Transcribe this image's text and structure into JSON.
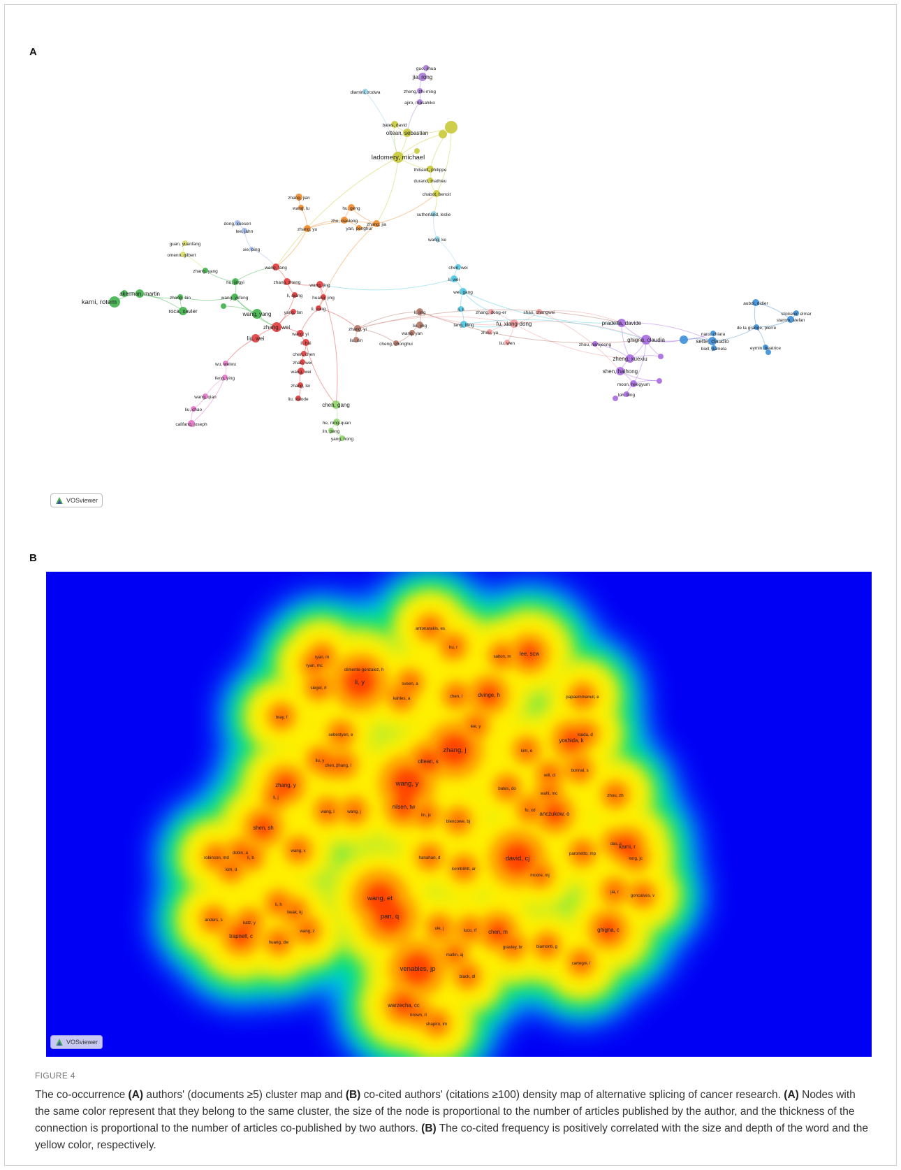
{
  "panelA": {
    "label": "A",
    "watermark": "VOSviewer",
    "nodes": [
      {
        "id": "guo_jihua",
        "label": "guo, jihua",
        "c": "purple",
        "r": 4
      },
      {
        "id": "jia_rong",
        "label": "jia, rong",
        "c": "purple",
        "r": 6
      },
      {
        "id": "dlamini",
        "label": "dlamini, zodwa",
        "c": "lightblue",
        "r": 4
      },
      {
        "id": "zheng_zm",
        "label": "zheng, zhi-ming",
        "c": "purple",
        "r": 4
      },
      {
        "id": "ajiro",
        "label": "ajiro, masahiko",
        "c": "purple",
        "r": 4
      },
      {
        "id": "bates",
        "label": "bates, david",
        "c": "olive",
        "r": 5
      },
      {
        "id": "oltean",
        "label": "oltean, sebastian",
        "c": "olive",
        "r": 6
      },
      {
        "id": "olive_a",
        "label": "",
        "c": "olive",
        "r": 9
      },
      {
        "id": "olive_b",
        "label": "",
        "c": "olive",
        "r": 6
      },
      {
        "id": "ladomery",
        "label": "ladomery, michael",
        "c": "olive",
        "r": 8
      },
      {
        "id": "olive_c",
        "label": "",
        "c": "olive",
        "r": 4
      },
      {
        "id": "thibault",
        "label": "thibault, philippe",
        "c": "olive",
        "r": 5
      },
      {
        "id": "durand",
        "label": "durand, mathieu",
        "c": "olive",
        "r": 4
      },
      {
        "id": "chabot",
        "label": "chabot, benoit",
        "c": "olive",
        "r": 5
      },
      {
        "id": "sutherland",
        "label": "sutherland, leslie",
        "c": "lightblue",
        "r": 4
      },
      {
        "id": "wang_ke",
        "label": "wang, ke",
        "c": "lightblue",
        "r": 4
      },
      {
        "id": "zhang_jian",
        "label": "zhang, jian",
        "c": "orange",
        "r": 5
      },
      {
        "id": "wang_lu",
        "label": "wang, lu",
        "c": "orange",
        "r": 4
      },
      {
        "id": "hu_geng",
        "label": "hu, geng",
        "c": "orange",
        "r": 5
      },
      {
        "id": "zhu_xiaolong",
        "label": "zhu, xiaolong",
        "c": "orange",
        "r": 5
      },
      {
        "id": "yan_penghui",
        "label": "yan, penghui",
        "c": "orange",
        "r": 4
      },
      {
        "id": "zhang_yu",
        "label": "zhang, yu",
        "c": "orange",
        "r": 5
      },
      {
        "id": "zhang_jia",
        "label": "zhang, jia",
        "c": "orange",
        "r": 5
      },
      {
        "id": "dong",
        "label": "dong, xuesen",
        "c": "paleblue",
        "r": 4
      },
      {
        "id": "lee_jahn",
        "label": "lee, jahn",
        "c": "paleblue",
        "r": 4
      },
      {
        "id": "xie_ping",
        "label": "xie, ping",
        "c": "paleblue",
        "r": 3
      },
      {
        "id": "guan",
        "label": "guan, yuanfang",
        "c": "yellowgreen",
        "r": 4
      },
      {
        "id": "omenn",
        "label": "omenn, gilbert",
        "c": "yellowgreen",
        "r": 4
      },
      {
        "id": "zhang_yang",
        "label": "zhang, yang",
        "c": "green",
        "r": 4
      },
      {
        "id": "hu_jingyi",
        "label": "hu, jingyi",
        "c": "green",
        "r": 5
      },
      {
        "id": "karni",
        "label": "karni, rotem",
        "c": "green",
        "r": 8
      },
      {
        "id": "akerman",
        "label": "akerman, martin",
        "c": "green",
        "r": 6
      },
      {
        "id": "zhang_bin",
        "label": "zhang, bin",
        "c": "green",
        "r": 4
      },
      {
        "id": "roca",
        "label": "roca, xavier",
        "c": "green",
        "r": 6
      },
      {
        "id": "wang_yefeng",
        "label": "wang, yefeng",
        "c": "green",
        "r": 5
      },
      {
        "id": "wang_yang",
        "label": "wang, yang",
        "c": "green",
        "r": 7
      },
      {
        "id": "green_a",
        "label": "",
        "c": "green",
        "r": 5
      },
      {
        "id": "green_b",
        "label": "",
        "c": "green",
        "r": 4
      },
      {
        "id": "wang_fang",
        "label": "wang, fang",
        "c": "red",
        "r": 5
      },
      {
        "id": "zhang_zheng",
        "label": "zhang, zheng",
        "c": "red",
        "r": 5
      },
      {
        "id": "li_qiang",
        "label": "li, qiang",
        "c": "red",
        "r": 4
      },
      {
        "id": "wang_jing",
        "label": "wang, jing",
        "c": "red",
        "r": 5
      },
      {
        "id": "huang_jing",
        "label": "huang, jing",
        "c": "red",
        "r": 4
      },
      {
        "id": "yang_fan",
        "label": "yang, fan",
        "c": "red",
        "r": 4
      },
      {
        "id": "li_yang",
        "label": "li, yang",
        "c": "red",
        "r": 4
      },
      {
        "id": "zhang_wei",
        "label": "zhang, wei",
        "c": "red",
        "r": 7
      },
      {
        "id": "liu_wei",
        "label": "liu, wei",
        "c": "red",
        "r": 6
      },
      {
        "id": "wang_yi",
        "label": "wang, yi",
        "c": "red",
        "r": 5
      },
      {
        "id": "li_hui",
        "label": "li, hui",
        "c": "red",
        "r": 5
      },
      {
        "id": "chen_chen",
        "label": "chen, chen",
        "c": "red",
        "r": 4
      },
      {
        "id": "zhao_wei",
        "label": "zhao, wei",
        "c": "red",
        "r": 4
      },
      {
        "id": "wang_wei",
        "label": "wang, wei",
        "c": "red",
        "r": 5
      },
      {
        "id": "zhang_lei",
        "label": "zhang, lei",
        "c": "red",
        "r": 4
      },
      {
        "id": "liu_xiaode",
        "label": "liu, xiaode",
        "c": "red",
        "r": 4
      },
      {
        "id": "wu_weiwu",
        "label": "wu, weiwu",
        "c": "pink",
        "r": 4
      },
      {
        "id": "feng_ying",
        "label": "feng, ying",
        "c": "pink",
        "r": 4
      },
      {
        "id": "wang_qian",
        "label": "wang, qian",
        "c": "pink",
        "r": 4
      },
      {
        "id": "liu_chao",
        "label": "liu, chao",
        "c": "pink",
        "r": 4
      },
      {
        "id": "califano",
        "label": "califano, joseph",
        "c": "pink",
        "r": 5
      },
      {
        "id": "chen_gang",
        "label": "chen, gang",
        "c": "lightgreen",
        "r": 6
      },
      {
        "id": "he_rq",
        "label": "he, rong-quan",
        "c": "lightgreen",
        "r": 5
      },
      {
        "id": "lin_peng",
        "label": "lin, peng",
        "c": "lightgreen",
        "r": 4
      },
      {
        "id": "yang_hong",
        "label": "yang, hong",
        "c": "lightgreen",
        "r": 4
      },
      {
        "id": "zhang_yi",
        "label": "zhang, yi",
        "c": "brown",
        "r": 5
      },
      {
        "id": "liu_xin",
        "label": "liu, xin",
        "c": "brown",
        "r": 4
      },
      {
        "id": "cheng",
        "label": "cheng, chonghui",
        "c": "brown",
        "r": 4
      },
      {
        "id": "li_jing",
        "label": "li, jing",
        "c": "brown",
        "r": 5
      },
      {
        "id": "liu_jing",
        "label": "liu, jing",
        "c": "brown",
        "r": 5
      },
      {
        "id": "wang_yan",
        "label": "wang, yan",
        "c": "brown",
        "r": 4
      },
      {
        "id": "chen_wei",
        "label": "chen, wei",
        "c": "cyan",
        "r": 4
      },
      {
        "id": "li_wei",
        "label": "li, wei",
        "c": "cyan",
        "r": 5
      },
      {
        "id": "wei_gang",
        "label": "wei, gang",
        "c": "cyan",
        "r": 5
      },
      {
        "id": "li_li",
        "label": "li, li",
        "c": "cyan",
        "r": 4
      },
      {
        "id": "tang_liling",
        "label": "tang, liling",
        "c": "cyan",
        "r": 5
      },
      {
        "id": "zhang_de",
        "label": "zhang, dong-er",
        "c": "salmon",
        "r": 4
      },
      {
        "id": "fu_xd",
        "label": "fu, xiang-dong",
        "c": "salmon",
        "r": 6
      },
      {
        "id": "zhou_yu",
        "label": "zhou, yu",
        "c": "salmon",
        "r": 4
      },
      {
        "id": "liu_wen",
        "label": "liu, wen",
        "c": "salmon",
        "r": 4
      },
      {
        "id": "shao",
        "label": "shao, changwei",
        "c": "salmon",
        "r": 4
      },
      {
        "id": "pradella",
        "label": "pradella, davide",
        "c": "violet",
        "r": 6
      },
      {
        "id": "ghigna",
        "label": "ghigna, claudia",
        "c": "violet",
        "r": 7
      },
      {
        "id": "zhou_nj",
        "label": "zhou, namjeong",
        "c": "violet",
        "r": 4
      },
      {
        "id": "zheng_xx",
        "label": "zheng, xuexiu",
        "c": "violet",
        "r": 6
      },
      {
        "id": "shen_hh",
        "label": "shen, haihong",
        "c": "violet",
        "r": 6
      },
      {
        "id": "moon",
        "label": "moon, heegyum",
        "c": "violet",
        "r": 5
      },
      {
        "id": "loh",
        "label": "loh, tiing",
        "c": "violet",
        "r": 4
      },
      {
        "id": "v1",
        "label": "",
        "c": "violet",
        "r": 4
      },
      {
        "id": "v2",
        "label": "",
        "c": "violet",
        "r": 4
      },
      {
        "id": "v3",
        "label": "",
        "c": "violet",
        "r": 4
      },
      {
        "id": "aubol",
        "label": "aubol, didier",
        "c": "blue",
        "r": 5
      },
      {
        "id": "stickeler",
        "label": "stickeler, elmar",
        "c": "blue",
        "r": 4
      },
      {
        "id": "stamm",
        "label": "stamm, stefan",
        "c": "blue",
        "r": 5
      },
      {
        "id": "lagrange",
        "label": "de la grange, pierre",
        "c": "blue",
        "r": 4
      },
      {
        "id": "naro",
        "label": "naro, chiara",
        "c": "blue",
        "r": 4
      },
      {
        "id": "sette",
        "label": "sette, claudio",
        "c": "blue",
        "r": 6
      },
      {
        "id": "biell",
        "label": "biell, pamela",
        "c": "blue",
        "r": 4
      },
      {
        "id": "eymin",
        "label": "eymin, beatrice",
        "c": "blue",
        "r": 4
      },
      {
        "id": "b1",
        "label": "",
        "c": "blue",
        "r": 6
      },
      {
        "id": "b2",
        "label": "",
        "c": "blue",
        "r": 4
      }
    ]
  },
  "panelB": {
    "label": "B",
    "watermark": "VOSviewer",
    "terms": [
      {
        "label": "antonarakis, es",
        "w": 1
      },
      {
        "label": "hu, r",
        "w": 1
      },
      {
        "label": "salton, m",
        "w": 1
      },
      {
        "label": "lee, scw",
        "w": 2
      },
      {
        "label": "ryan, m",
        "w": 1
      },
      {
        "label": "ryan, mc",
        "w": 1
      },
      {
        "label": "climente-gonzalez, h",
        "w": 1
      },
      {
        "label": "li, y",
        "w": 3
      },
      {
        "label": "sveen, a",
        "w": 1
      },
      {
        "label": "siegel, rl",
        "w": 1
      },
      {
        "label": "kahles, a",
        "w": 1
      },
      {
        "label": "chen, l",
        "w": 1
      },
      {
        "label": "dvinge, h",
        "w": 2
      },
      {
        "label": "papaemmanuil, e",
        "w": 1
      },
      {
        "label": "bray, f",
        "w": 1
      },
      {
        "label": "lee, y",
        "w": 1
      },
      {
        "label": "sebestyen, e",
        "w": 1
      },
      {
        "label": "kaida, d",
        "w": 1
      },
      {
        "label": "yoshida, k",
        "w": 2
      },
      {
        "label": "zhang, j",
        "w": 3
      },
      {
        "label": "kim, e",
        "w": 1
      },
      {
        "label": "liu, y",
        "w": 1
      },
      {
        "label": "oltean, s",
        "w": 2
      },
      {
        "label": "chen, j",
        "w": 1
      },
      {
        "label": "zhang, l",
        "w": 1
      },
      {
        "label": "bonnal, s",
        "w": 1
      },
      {
        "label": "will, cl",
        "w": 1
      },
      {
        "label": "wang, y",
        "w": 3
      },
      {
        "label": "zhang, y",
        "w": 2
      },
      {
        "label": "bates, do",
        "w": 1
      },
      {
        "label": "wahl, mc",
        "w": 1
      },
      {
        "label": "zhou, zh",
        "w": 1
      },
      {
        "label": "li, j",
        "w": 1
      },
      {
        "label": "nilsen, tw",
        "w": 2
      },
      {
        "label": "anczukow, o",
        "w": 2
      },
      {
        "label": "fu, xd",
        "w": 1
      },
      {
        "label": "wang, l",
        "w": 1
      },
      {
        "label": "wang, j",
        "w": 1
      },
      {
        "label": "lin, jc",
        "w": 1
      },
      {
        "label": "blencowe, bj",
        "w": 1
      },
      {
        "label": "shen, sh",
        "w": 2
      },
      {
        "label": "das, s",
        "w": 1
      },
      {
        "label": "karni, r",
        "w": 2
      },
      {
        "label": "dobin, a",
        "w": 1
      },
      {
        "label": "wang, x",
        "w": 1
      },
      {
        "label": "david, cj",
        "w": 3
      },
      {
        "label": "paronetto, mp",
        "w": 1
      },
      {
        "label": "robinson, md",
        "w": 1
      },
      {
        "label": "li, b",
        "w": 1
      },
      {
        "label": "hanahan, d",
        "w": 1
      },
      {
        "label": "long, jc",
        "w": 1
      },
      {
        "label": "kim, d",
        "w": 1
      },
      {
        "label": "kornblihtt, ar",
        "w": 1
      },
      {
        "label": "moore, mj",
        "w": 1
      },
      {
        "label": "wang, et",
        "w": 3
      },
      {
        "label": "jia, r",
        "w": 1
      },
      {
        "label": "goncalves, v",
        "w": 1
      },
      {
        "label": "li, h",
        "w": 1
      },
      {
        "label": "pan, q",
        "w": 3
      },
      {
        "label": "liwak, kj",
        "w": 1
      },
      {
        "label": "anders, s",
        "w": 1
      },
      {
        "label": "katz, y",
        "w": 1
      },
      {
        "label": "ule, j",
        "w": 1
      },
      {
        "label": "luco, rf",
        "w": 1
      },
      {
        "label": "chen, m",
        "w": 2
      },
      {
        "label": "ghigna, c",
        "w": 2
      },
      {
        "label": "wang, z",
        "w": 1
      },
      {
        "label": "trapnell, c",
        "w": 2
      },
      {
        "label": "gravley, br",
        "w": 1
      },
      {
        "label": "biamonti, g",
        "w": 1
      },
      {
        "label": "huang, dw",
        "w": 1
      },
      {
        "label": "matlin, aj",
        "w": 1
      },
      {
        "label": "cartegni, l",
        "w": 1
      },
      {
        "label": "venables, jp",
        "w": 3
      },
      {
        "label": "black, dl",
        "w": 1
      },
      {
        "label": "warzecha, cc",
        "w": 2
      },
      {
        "label": "brown, rl",
        "w": 1
      },
      {
        "label": "shapiro, im",
        "w": 1
      }
    ]
  },
  "colors": {
    "red": "#e23b3b",
    "green": "#3fb34b",
    "lightgreen": "#8fd46b",
    "olive": "#c9c93a",
    "orange": "#f0892b",
    "purple": "#a779d6",
    "violet": "#a86be0",
    "lightblue": "#8fd3e8",
    "cyan": "#4fc7e3",
    "blue": "#3b8fd8",
    "pink": "#e476c9",
    "brown": "#b37463",
    "salmon": "#f29a9a",
    "paleblue": "#9fb8e8",
    "yellowgreen": "#d9de63",
    "density_background": "#0000f5"
  },
  "caption": {
    "figure_label": "FIGURE 4",
    "p1": "The co-occurrence ",
    "b1": "(A)",
    "p2": " authors' (documents ≥5) cluster map and ",
    "b2": "(B)",
    "p3": " co-cited authors' (citations ≥100) density map of alternative splicing of cancer research. ",
    "b3": "(A)",
    "p4": " Nodes with the same color represent that they belong to the same cluster, the size of the node is proportional to the number of articles published by the author, and the thickness of the connection is proportional to the number of articles co-published by two authors. ",
    "b4": "(B)",
    "p5": " The co-cited frequency is positively correlated with the size and depth of the word and the yellow color, respectively."
  }
}
